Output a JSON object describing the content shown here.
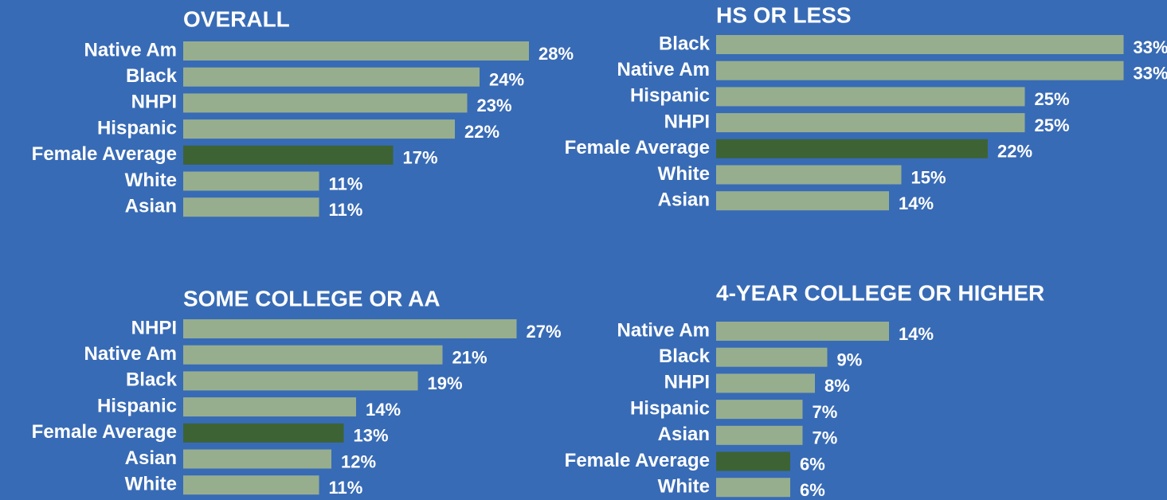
{
  "chart_data": [
    {
      "type": "hbar",
      "title": "OVERALL",
      "categories": [
        "Native Am",
        "Black",
        "NHPI",
        "Hispanic",
        "Female Average",
        "White",
        "Asian"
      ],
      "values": [
        28,
        24,
        23,
        22,
        17,
        11,
        11
      ],
      "value_labels": [
        "28%",
        "24%",
        "23%",
        "22%",
        "17%",
        "11%",
        "11%"
      ],
      "colors": [
        "#97ae8e",
        "#97ae8e",
        "#97ae8e",
        "#97ae8e",
        "#3d6335",
        "#97ae8e",
        "#97ae8e"
      ]
    },
    {
      "type": "hbar",
      "title": "HS OR LESS",
      "categories": [
        "Black",
        "Native Am",
        "Hispanic",
        "NHPI",
        "Female Average",
        "White",
        "Asian"
      ],
      "values": [
        33,
        33,
        25,
        25,
        22,
        15,
        14
      ],
      "value_labels": [
        "33%",
        "33%",
        "25%",
        "25%",
        "22%",
        "15%",
        "14%"
      ],
      "colors": [
        "#97ae8e",
        "#97ae8e",
        "#97ae8e",
        "#97ae8e",
        "#3d6335",
        "#97ae8e",
        "#97ae8e"
      ]
    },
    {
      "type": "hbar",
      "title": "SOME COLLEGE OR AA",
      "categories": [
        "NHPI",
        "Native Am",
        "Black",
        "Hispanic",
        "Female Average",
        "Asian",
        "White"
      ],
      "values": [
        27,
        21,
        19,
        14,
        13,
        12,
        11
      ],
      "value_labels": [
        "27%",
        "21%",
        "19%",
        "14%",
        "13%",
        "12%",
        "11%"
      ],
      "colors": [
        "#97ae8e",
        "#97ae8e",
        "#97ae8e",
        "#97ae8e",
        "#3d6335",
        "#97ae8e",
        "#97ae8e"
      ]
    },
    {
      "type": "hbar",
      "title": "4-YEAR COLLEGE OR HIGHER",
      "categories": [
        "Native Am",
        "Black",
        "NHPI",
        "Hispanic",
        "Asian",
        "Female Average",
        "White"
      ],
      "values": [
        14,
        9,
        8,
        7,
        7,
        6,
        6
      ],
      "value_labels": [
        "14%",
        "9%",
        "8%",
        "7%",
        "7%",
        "6%",
        "6%"
      ],
      "colors": [
        "#97ae8e",
        "#97ae8e",
        "#97ae8e",
        "#97ae8e",
        "#97ae8e",
        "#3d6335",
        "#97ae8e"
      ]
    }
  ]
}
